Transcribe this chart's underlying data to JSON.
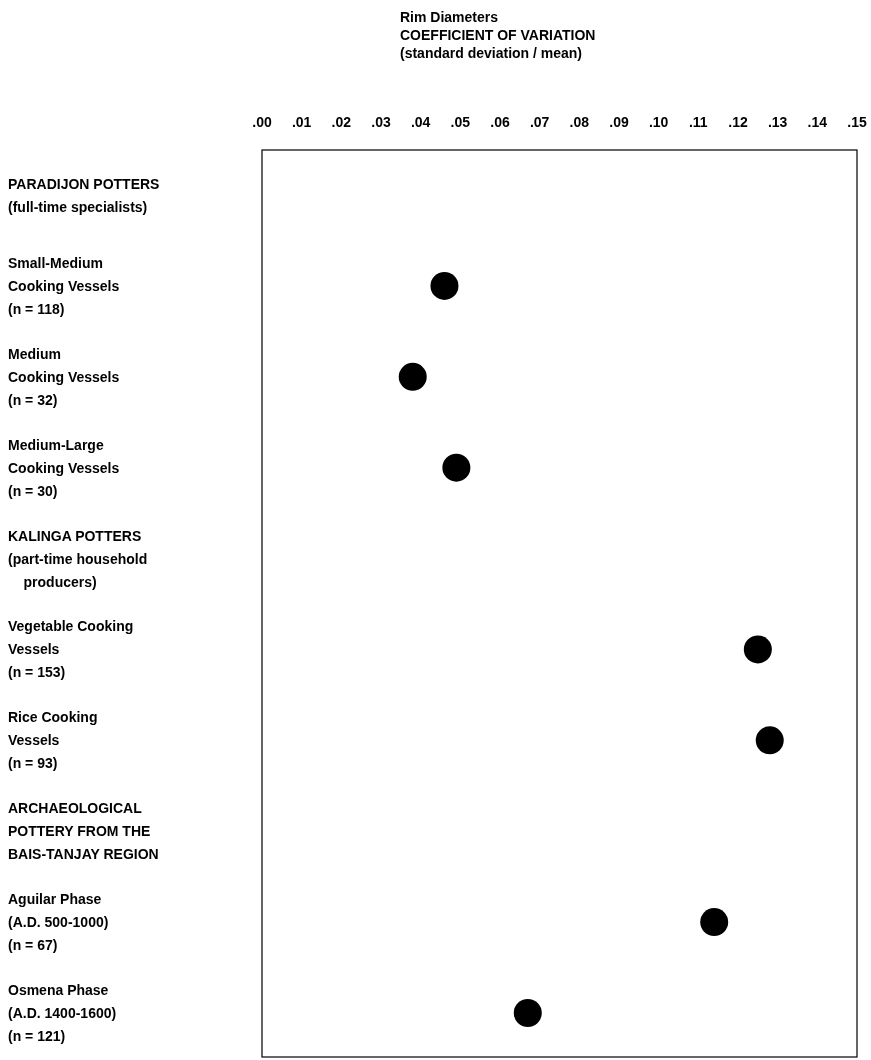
{
  "chart_data": {
    "type": "scatter",
    "title": "Rim Diameters\nCOEFFICIENT OF VARIATION\n(standard deviation / mean)",
    "orientation": "horizontal",
    "categories": [
      "PARADIJON POTTERS\n(full-time specialists)",
      "Small-Medium\nCooking Vessels\n(n = 118)",
      "Medium\nCooking Vessels\n(n = 32)",
      "Medium-Large\nCooking Vessels\n(n = 30)",
      "KALINGA POTTERS\n(part-time household\n    producers)",
      "Vegetable Cooking\nVessels\n(n = 153)",
      "Rice Cooking\nVessels\n(n = 93)",
      "ARCHAEOLOGICAL\nPOTTERY FROM THE\nBAIS-TANJAY REGION",
      "Aguilar Phase\n(A.D. 500-1000)\n(n = 67)",
      "Osmena Phase\n(A.D. 1400-1600)\n(n = 121)"
    ],
    "series": [
      {
        "color": "#000000",
        "values": [
          null,
          0.046,
          0.038,
          0.049,
          null,
          0.125,
          0.128,
          null,
          0.114,
          0.067
        ]
      }
    ],
    "xlim": [
      0,
      0.15
    ],
    "xticks": [
      {
        "value": 0,
        "label": ".00"
      },
      {
        "value": 0.01,
        "label": ".01"
      },
      {
        "value": 0.02,
        "label": ".02"
      },
      {
        "value": 0.03,
        "label": ".03"
      },
      {
        "value": 0.04,
        "label": ".04"
      },
      {
        "value": 0.05,
        "label": ".05"
      },
      {
        "value": 0.06,
        "label": ".06"
      },
      {
        "value": 0.07,
        "label": ".07"
      },
      {
        "value": 0.08,
        "label": ".08"
      },
      {
        "value": 0.09,
        "label": ".09"
      },
      {
        "value": 0.1,
        "label": ".10"
      },
      {
        "value": 0.11,
        "label": ".11"
      },
      {
        "value": 0.12,
        "label": ".12"
      },
      {
        "value": 0.13,
        "label": ".13"
      },
      {
        "value": 0.14,
        "label": ".14"
      },
      {
        "value": 0.15,
        "label": ".15"
      }
    ],
    "marker": "circle",
    "grid": false
  }
}
